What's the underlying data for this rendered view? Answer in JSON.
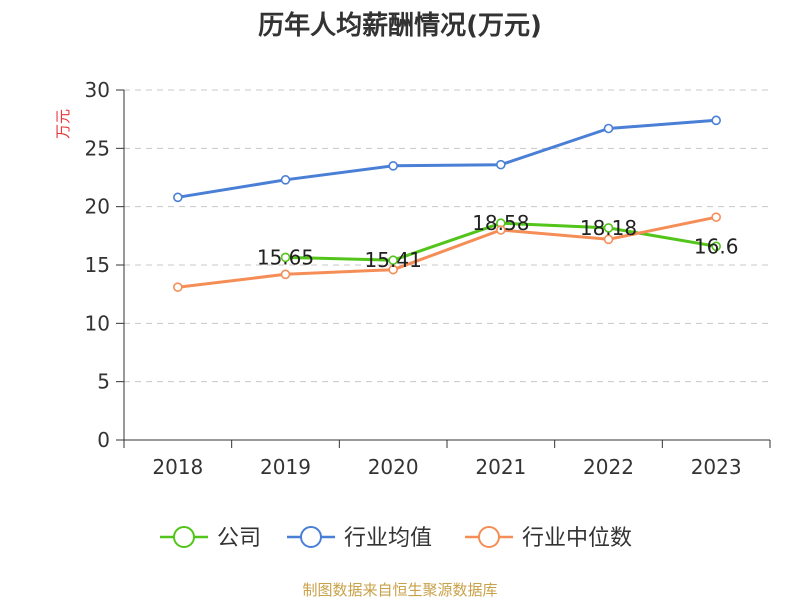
{
  "chart_data": {
    "type": "line",
    "title": "历年人均薪酬情况(万元)",
    "ylabel": "万元",
    "xlabel": "",
    "categories": [
      "2018",
      "2019",
      "2020",
      "2021",
      "2022",
      "2023"
    ],
    "ylim": [
      0,
      30
    ],
    "yticks": [
      0,
      5,
      10,
      15,
      20,
      25,
      30
    ],
    "grid": true,
    "legend_position": "bottom",
    "series": [
      {
        "name": "公司",
        "color": "#52c41a",
        "values": [
          null,
          15.65,
          15.41,
          18.58,
          18.18,
          16.6
        ],
        "labels": [
          "",
          "15.65",
          "15.41",
          "18.58",
          "18.18",
          "16.6"
        ]
      },
      {
        "name": "行业均值",
        "color": "#4a7fd6",
        "values": [
          20.8,
          22.3,
          23.5,
          23.6,
          26.7,
          27.4
        ]
      },
      {
        "name": "行业中位数",
        "color": "#f58e56",
        "values": [
          13.1,
          14.2,
          14.6,
          18.0,
          17.2,
          19.1
        ]
      }
    ],
    "source": "制图数据来自恒生聚源数据库"
  }
}
